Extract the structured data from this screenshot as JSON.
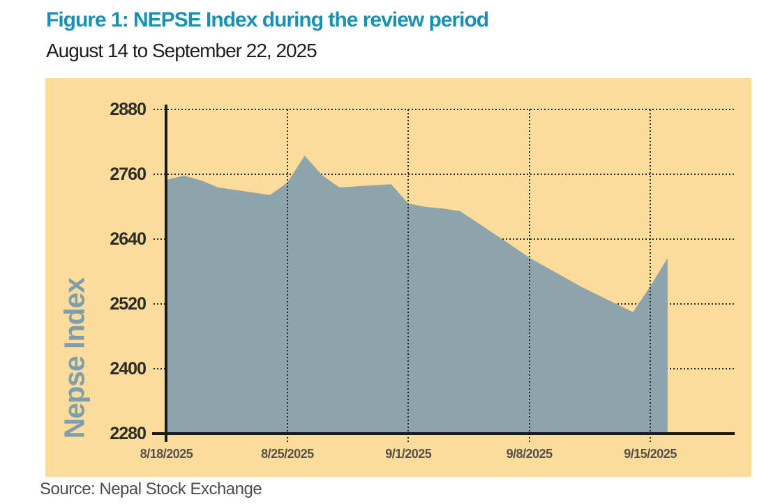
{
  "figure": {
    "title": "Figure 1: NEPSE Index during the review period",
    "subtitle": "August 14 to September 22, 2025",
    "source": "Source: Nepal Stock Exchange"
  },
  "chart_data": {
    "type": "area",
    "title": "NEPSE Index during the review period",
    "xlabel": "",
    "ylabel": "Nepse Index",
    "ylim": [
      2280,
      2880
    ],
    "yticks": [
      2880,
      2760,
      2640,
      2520,
      2400,
      2280
    ],
    "xtick_labels": [
      "8/18/2025",
      "8/25/2025",
      "9/1/2025",
      "9/8/2025",
      "9/15/2025"
    ],
    "grid": "dotted black, horizontal behind series, vertical in front",
    "legend_position": "none",
    "series": [
      {
        "name": "Nepse Index",
        "points": [
          {
            "date": "8/18/2025",
            "value": 2750
          },
          {
            "date": "8/19/2025",
            "value": 2758
          },
          {
            "date": "8/20/2025",
            "value": 2749
          },
          {
            "date": "8/21/2025",
            "value": 2736
          },
          {
            "date": "8/24/2025",
            "value": 2722
          },
          {
            "date": "8/25/2025",
            "value": 2745
          },
          {
            "date": "8/26/2025",
            "value": 2795
          },
          {
            "date": "8/27/2025",
            "value": 2759
          },
          {
            "date": "8/28/2025",
            "value": 2736
          },
          {
            "date": "8/31/2025",
            "value": 2742
          },
          {
            "date": "9/1/2025",
            "value": 2706
          },
          {
            "date": "9/2/2025",
            "value": 2700
          },
          {
            "date": "9/3/2025",
            "value": 2697
          },
          {
            "date": "9/4/2025",
            "value": 2692
          },
          {
            "date": "9/7/2025",
            "value": 2628
          },
          {
            "date": "9/8/2025",
            "value": 2606
          },
          {
            "date": "9/9/2025",
            "value": 2588
          },
          {
            "date": "9/10/2025",
            "value": 2570
          },
          {
            "date": "9/11/2025",
            "value": 2552
          },
          {
            "date": "9/14/2025",
            "value": 2505
          },
          {
            "date": "9/15/2025",
            "value": 2553
          },
          {
            "date": "9/16/2025",
            "value": 2605
          }
        ]
      }
    ],
    "colors": {
      "panel_bg": "#FBDC9B",
      "area_fill": "#8EA4AC",
      "title_text": "#1792B4",
      "subtitle_text": "#1F1F1F",
      "ylabel_text": "#7E9DAD",
      "ytick_text": "#2D2B28",
      "xtick_text": "#55504B",
      "axis_line": "#1B1B1B",
      "grid_dots": "#262626",
      "source_text": "#4C4C4C"
    }
  }
}
